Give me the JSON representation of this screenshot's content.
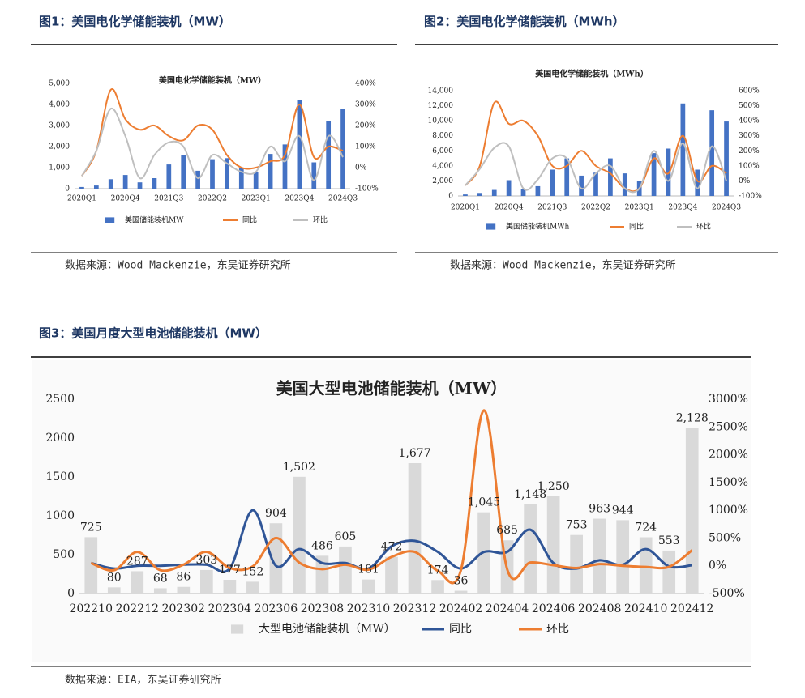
{
  "figures": [
    {
      "caption": "图1：美国电化学储能装机（MW）",
      "source": "数据来源：Wood Mackenzie，东吴证券研究所"
    },
    {
      "caption": "图2：美国电化学储能装机（MWh）",
      "source": "数据来源：Wood Mackenzie，东吴证券研究所"
    },
    {
      "caption": "图3：美国月度大型电池储能装机（MW）",
      "source": "数据来源：EIA，东吴证券研究所"
    }
  ],
  "chart_data": [
    {
      "type": "combo",
      "title": "美国电化学储能装机（MW）",
      "categories": [
        "2020Q1",
        null,
        null,
        "2020Q4",
        null,
        null,
        "2021Q3",
        null,
        null,
        "2022Q2",
        null,
        null,
        "2023Q1",
        null,
        null,
        "2023Q4",
        null,
        null,
        "2024Q3"
      ],
      "series": [
        {
          "name": "美国储能装机MW",
          "type": "bar",
          "color": "#4472c4",
          "values": [
            80,
            150,
            450,
            650,
            300,
            500,
            1150,
            1600,
            850,
            1400,
            1450,
            1000,
            800,
            1650,
            2100,
            4200,
            1250,
            3200,
            3800
          ]
        },
        {
          "name": "同比",
          "type": "line",
          "axis": "y2",
          "color": "#ed7d31",
          "values": [
            -40,
            80,
            370,
            230,
            180,
            200,
            150,
            130,
            200,
            180,
            60,
            0,
            0,
            30,
            60,
            300,
            50,
            100,
            80
          ]
        },
        {
          "name": "环比",
          "type": "line",
          "axis": "y2",
          "color": "#bfbfbf",
          "values": [
            -40,
            80,
            280,
            150,
            -50,
            60,
            120,
            100,
            -50,
            60,
            20,
            -20,
            -20,
            100,
            30,
            150,
            -60,
            150,
            50
          ]
        }
      ],
      "ylim": [
        0,
        5000
      ],
      "yticks": [
        0,
        {
          "value": 1000,
          "label": "1,000"
        },
        {
          "value": 2000,
          "label": "2,000"
        },
        {
          "value": 3000,
          "label": "3,000"
        },
        {
          "value": 4000,
          "label": "4,000"
        },
        {
          "value": 5000,
          "label": "5,000"
        }
      ],
      "y2lim": [
        -100,
        400
      ],
      "y2ticks": [
        {
          "value": -100,
          "label": "-100%"
        },
        {
          "value": 0,
          "label": "0%"
        },
        {
          "value": 100,
          "label": "100%"
        },
        {
          "value": 200,
          "label": "200%"
        },
        {
          "value": 300,
          "label": "300%"
        },
        {
          "value": 400,
          "label": "400%"
        }
      ],
      "grid": false,
      "legend": "bottom"
    },
    {
      "type": "combo",
      "title": "美国电化学储能装机（MWh）",
      "categories": [
        "2020Q1",
        null,
        null,
        "2020Q4",
        null,
        null,
        "2021Q3",
        null,
        null,
        "2022Q2",
        null,
        null,
        "2023Q1",
        null,
        null,
        "2023Q4",
        null,
        null,
        "2024Q3"
      ],
      "series": [
        {
          "name": "美国储能装机MWh",
          "type": "bar",
          "color": "#4472c4",
          "values": [
            200,
            400,
            800,
            2100,
            900,
            1300,
            3500,
            5000,
            2700,
            3100,
            5000,
            3000,
            2000,
            5700,
            6300,
            12300,
            3500,
            11400,
            9900
          ]
        },
        {
          "name": "同比",
          "type": "line",
          "axis": "y2",
          "color": "#ed7d31",
          "values": [
            -30,
            100,
            520,
            380,
            400,
            300,
            100,
            100,
            200,
            100,
            50,
            -50,
            -50,
            150,
            50,
            300,
            0,
            100,
            50
          ]
        },
        {
          "name": "环比",
          "type": "line",
          "axis": "y2",
          "color": "#bfbfbf",
          "values": [
            -30,
            80,
            220,
            230,
            -50,
            10,
            150,
            150,
            -50,
            50,
            100,
            -50,
            -50,
            200,
            0,
            250,
            -50,
            230,
            0
          ]
        }
      ],
      "ylim": [
        0,
        14000
      ],
      "yticks": [
        0,
        {
          "value": 2000,
          "label": "2,000"
        },
        {
          "value": 4000,
          "label": "4,000"
        },
        {
          "value": 6000,
          "label": "6,000"
        },
        {
          "value": 8000,
          "label": "8,000"
        },
        {
          "value": 10000,
          "label": "10,000"
        },
        {
          "value": 12000,
          "label": "12,000"
        },
        {
          "value": 14000,
          "label": "14,000"
        }
      ],
      "y2lim": [
        -100,
        600
      ],
      "y2ticks": [
        {
          "value": -100,
          "label": "-100%"
        },
        {
          "value": 0,
          "label": "0%"
        },
        {
          "value": 100,
          "label": "100%"
        },
        {
          "value": 200,
          "label": "200%"
        },
        {
          "value": 300,
          "label": "300%"
        },
        {
          "value": 400,
          "label": "400%"
        },
        {
          "value": 500,
          "label": "500%"
        },
        {
          "value": 600,
          "label": "600%"
        }
      ],
      "grid": false,
      "legend": "bottom"
    },
    {
      "type": "combo",
      "title": "美国大型电池储能装机（MW）",
      "categories": [
        "202210",
        null,
        "202212",
        null,
        "202302",
        null,
        "202304",
        null,
        "202306",
        null,
        "202308",
        null,
        "202310",
        null,
        "202312",
        null,
        "202402",
        null,
        "202404",
        null,
        "202406",
        null,
        "202408",
        null,
        "202410",
        null,
        "202412"
      ],
      "series": [
        {
          "name": "大型电池储能装机（MW）",
          "type": "bar",
          "color": "#d9d9d9",
          "values": [
            725,
            80,
            287,
            68,
            86,
            303,
            177,
            152,
            904,
            1502,
            486,
            605,
            181,
            472,
            1677,
            174,
            36,
            1045,
            685,
            1148,
            1250,
            753,
            963,
            944,
            724,
            553,
            2128
          ],
          "value_labels": [
            "725",
            "80",
            "287",
            "68",
            "86",
            "303",
            "177",
            "152",
            "904",
            "1,502",
            "486",
            "605",
            "181",
            "472",
            "1,677",
            "174",
            "36",
            "1,045",
            "685",
            "1,148",
            "1,250",
            "753",
            "963",
            "944",
            "724",
            "553",
            "2,128"
          ]
        },
        {
          "name": "同比",
          "type": "line",
          "axis": "y2",
          "color": "#2f5597",
          "values": [
            50,
            -50,
            0,
            0,
            20,
            20,
            -50,
            1000,
            0,
            300,
            50,
            50,
            -50,
            350,
            450,
            250,
            -50,
            250,
            250,
            650,
            50,
            -50,
            100,
            20,
            300,
            -10,
            10
          ]
        },
        {
          "name": "环比",
          "type": "line",
          "axis": "y2",
          "color": "#ed7d31",
          "values": [
            50,
            -80,
            250,
            -80,
            20,
            250,
            -40,
            -10,
            500,
            60,
            -60,
            20,
            -70,
            160,
            250,
            -90,
            -80,
            2800,
            -60,
            60,
            10,
            -40,
            30,
            0,
            -20,
            -20,
            280
          ]
        }
      ],
      "ylim": [
        0,
        2500
      ],
      "yticks": [
        0,
        500,
        1000,
        1500,
        2000,
        2500
      ],
      "y2lim": [
        -500,
        3000
      ],
      "y2ticks": [
        {
          "value": -500,
          "label": "-500%"
        },
        {
          "value": 0,
          "label": "0%"
        },
        {
          "value": 500,
          "label": "500%"
        },
        {
          "value": 1000,
          "label": "1000%"
        },
        {
          "value": 1500,
          "label": "1500%"
        },
        {
          "value": 2000,
          "label": "2000%"
        },
        {
          "value": 2500,
          "label": "2500%"
        },
        {
          "value": 3000,
          "label": "3000%"
        }
      ],
      "grid": false,
      "legend": "bottom"
    }
  ]
}
